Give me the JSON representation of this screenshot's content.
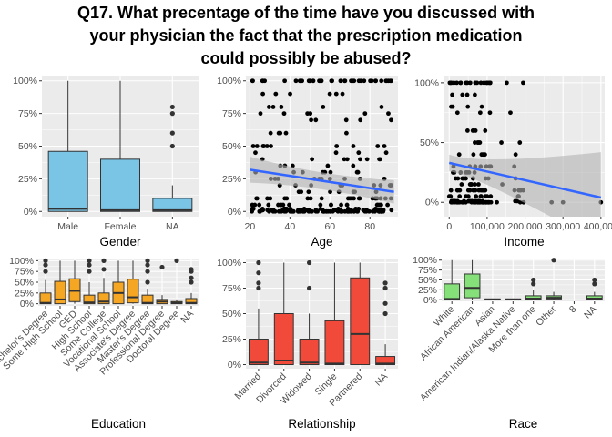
{
  "title_lines": [
    "Q17. What precentage of the time have you discussed with",
    "your physician the fact that the prescription medication",
    "could possibly be abused?"
  ],
  "colors": {
    "panel_bg": "#ebebeb",
    "grid": "#ffffff",
    "box_blue": "#7ac4e6",
    "box_orange": "#f5a623",
    "box_red": "#f24a3a",
    "box_green": "#85e07a",
    "fit_line": "#3366ff",
    "ci_band": "#b3b3b3",
    "point": "#000000",
    "outlier": "#333333"
  },
  "chart_data": [
    {
      "id": "gender",
      "type": "box",
      "xlabel": "Gender",
      "ylabel": "",
      "ylim": [
        -0.04,
        1.04
      ],
      "yticks": [
        0,
        0.25,
        0.5,
        0.75,
        1
      ],
      "ytick_labels": [
        "0%",
        "25%",
        "50%",
        "75%",
        "100%"
      ],
      "categories": [
        "Male",
        "Female",
        "NA"
      ],
      "boxes": [
        {
          "min": 0,
          "q1": 0,
          "median": 0.02,
          "q3": 0.46,
          "max": 1.0,
          "outliers": []
        },
        {
          "min": 0,
          "q1": 0,
          "median": 0.01,
          "q3": 0.4,
          "max": 1.0,
          "outliers": []
        },
        {
          "min": 0,
          "q1": 0,
          "median": 0.01,
          "q3": 0.1,
          "max": 0.2,
          "outliers": [
            0.5,
            0.6,
            0.75,
            0.8
          ]
        }
      ],
      "fill": "#7ac4e6"
    },
    {
      "id": "age",
      "type": "scatter",
      "xlabel": "Age",
      "ylabel": "",
      "xlim": [
        18,
        94
      ],
      "xticks": [
        20,
        40,
        60,
        80
      ],
      "xtick_labels": [
        "20",
        "40",
        "60",
        "80"
      ],
      "ylim": [
        -0.04,
        1.04
      ],
      "yticks": [
        0,
        0.25,
        0.5,
        0.75,
        1
      ],
      "ytick_labels": [
        "0%",
        "25%",
        "50%",
        "75%",
        "100%"
      ],
      "trend": {
        "x0": 20,
        "y0": 0.32,
        "x1": 92,
        "y1": 0.15
      },
      "ci": {
        "x0": 20,
        "lo0": 0.22,
        "hi0": 0.42,
        "xm": 55,
        "lom": 0.2,
        "him": 0.27,
        "x1": 92,
        "lo1": 0.06,
        "hi1": 0.24
      }
    },
    {
      "id": "income",
      "type": "scatter",
      "xlabel": "Income",
      "ylabel": "",
      "xlim": [
        -15000,
        410000
      ],
      "xticks": [
        0,
        100000,
        200000,
        300000,
        400000
      ],
      "xtick_labels": [
        "0",
        "100,000",
        "200,000",
        "300,000",
        "400,000"
      ],
      "ylim": [
        -0.12,
        1.06
      ],
      "yticks": [
        0,
        0.5,
        1
      ],
      "ytick_labels": [
        "0%",
        "50%",
        "100%"
      ],
      "trend": {
        "x0": 0,
        "y0": 0.33,
        "x1": 400000,
        "y1": 0.04
      },
      "ci": {
        "x0": 0,
        "lo0": 0.26,
        "hi0": 0.4,
        "xm": 80000,
        "lom": 0.22,
        "him": 0.31,
        "x1": 400000,
        "lo1": -0.35,
        "hi1": 0.42
      }
    },
    {
      "id": "education",
      "type": "box",
      "xlabel": "Education",
      "ylabel": "",
      "ylim": [
        -0.05,
        1.05
      ],
      "yticks": [
        0,
        0.25,
        0.5,
        0.75,
        1
      ],
      "ytick_labels": [
        "0%",
        "25%",
        "50%",
        "75%",
        "100%"
      ],
      "categories": [
        "Bachelor's Degree",
        "Some High School",
        "GED",
        "High School",
        "Some College",
        "Vocational School",
        "Associate's Degree",
        "Master's Degree",
        "Professional Degree",
        "Doctoral Degree",
        "NA"
      ],
      "boxes": [
        {
          "min": 0,
          "q1": 0,
          "median": 0.02,
          "q3": 0.25,
          "max": 0.55,
          "outliers": [
            0.75,
            0.9,
            1.0
          ]
        },
        {
          "min": 0,
          "q1": 0,
          "median": 0.1,
          "q3": 0.52,
          "max": 1.0,
          "outliers": []
        },
        {
          "min": 0,
          "q1": 0.05,
          "median": 0.3,
          "q3": 0.58,
          "max": 1.0,
          "outliers": []
        },
        {
          "min": 0,
          "q1": 0,
          "median": 0.03,
          "q3": 0.2,
          "max": 0.5,
          "outliers": [
            0.75,
            0.9,
            1.0
          ]
        },
        {
          "min": 0,
          "q1": 0,
          "median": 0.05,
          "q3": 0.25,
          "max": 0.6,
          "outliers": [
            0.8,
            1.0
          ]
        },
        {
          "min": 0,
          "q1": 0,
          "median": 0.25,
          "q3": 0.5,
          "max": 1.0,
          "outliers": []
        },
        {
          "min": 0,
          "q1": 0.02,
          "median": 0.15,
          "q3": 0.57,
          "max": 1.0,
          "outliers": []
        },
        {
          "min": 0,
          "q1": 0,
          "median": 0.02,
          "q3": 0.2,
          "max": 0.35,
          "outliers": [
            0.5,
            0.75,
            0.9,
            1.0
          ]
        },
        {
          "min": 0,
          "q1": 0,
          "median": 0.05,
          "q3": 0.1,
          "max": 0.2,
          "outliers": [
            0.85
          ]
        },
        {
          "min": 0,
          "q1": 0,
          "median": 0.02,
          "q3": 0.05,
          "max": 0.1,
          "outliers": [
            1.0
          ]
        },
        {
          "min": 0,
          "q1": 0,
          "median": 0.02,
          "q3": 0.12,
          "max": 0.25,
          "outliers": [
            0.5,
            0.6,
            0.75,
            0.8
          ]
        }
      ],
      "fill": "#f5a623"
    },
    {
      "id": "relationship",
      "type": "box",
      "xlabel": "Relationship",
      "ylabel": "",
      "ylim": [
        -0.04,
        1.04
      ],
      "yticks": [
        0,
        0.25,
        0.5,
        0.75,
        1
      ],
      "ytick_labels": [
        "0%",
        "25%",
        "50%",
        "75%",
        "100%"
      ],
      "categories": [
        "Married",
        "Divorced",
        "Widowed",
        "Single",
        "Partnered",
        "NA"
      ],
      "boxes": [
        {
          "min": 0,
          "q1": 0,
          "median": 0.02,
          "q3": 0.25,
          "max": 0.55,
          "outliers": [
            0.75,
            0.8,
            0.9,
            1.0
          ]
        },
        {
          "min": 0,
          "q1": 0,
          "median": 0.04,
          "q3": 0.5,
          "max": 1.0,
          "outliers": []
        },
        {
          "min": 0,
          "q1": 0,
          "median": 0.02,
          "q3": 0.25,
          "max": 0.5,
          "outliers": [
            0.75,
            1.0
          ]
        },
        {
          "min": 0,
          "q1": 0,
          "median": 0.01,
          "q3": 0.43,
          "max": 1.0,
          "outliers": []
        },
        {
          "min": 0,
          "q1": 0,
          "median": 0.3,
          "q3": 0.85,
          "max": 1.0,
          "outliers": []
        },
        {
          "min": 0,
          "q1": 0,
          "median": 0.01,
          "q3": 0.08,
          "max": 0.2,
          "outliers": [
            0.5,
            0.6,
            0.75,
            0.8
          ]
        }
      ],
      "fill": "#f24a3a"
    },
    {
      "id": "race",
      "type": "box",
      "xlabel": "Race",
      "ylabel": "",
      "ylim": [
        -0.04,
        1.04
      ],
      "yticks": [
        0,
        0.25,
        0.5,
        0.75,
        1
      ],
      "ytick_labels": [
        "0%",
        "25%",
        "50%",
        "75%",
        "100%"
      ],
      "categories": [
        "White",
        "African American",
        "Asian",
        "American Indian/Alaska Native",
        "More than one",
        "Other",
        "8",
        "NA"
      ],
      "boxes": [
        {
          "min": 0,
          "q1": 0,
          "median": 0.02,
          "q3": 0.4,
          "max": 1.0,
          "outliers": []
        },
        {
          "min": 0,
          "q1": 0.05,
          "median": 0.3,
          "q3": 0.65,
          "max": 1.0,
          "outliers": []
        },
        {
          "min": 0,
          "q1": 0,
          "median": 0.01,
          "q3": 0.02,
          "max": 0.03,
          "outliers": []
        },
        {
          "min": 0,
          "q1": 0,
          "median": 0.01,
          "q3": 0.02,
          "max": 0.03,
          "outliers": []
        },
        {
          "min": 0,
          "q1": 0,
          "median": 0.03,
          "q3": 0.1,
          "max": 0.25,
          "outliers": [
            0.4,
            0.5
          ]
        },
        {
          "min": 0,
          "q1": 0.02,
          "median": 0.05,
          "q3": 0.1,
          "max": 0.2,
          "outliers": [
            1.0
          ]
        },
        null,
        {
          "min": 0,
          "q1": 0,
          "median": 0.03,
          "q3": 0.1,
          "max": 0.2,
          "outliers": [
            0.4,
            0.5
          ]
        }
      ],
      "fill": "#85e07a"
    }
  ]
}
